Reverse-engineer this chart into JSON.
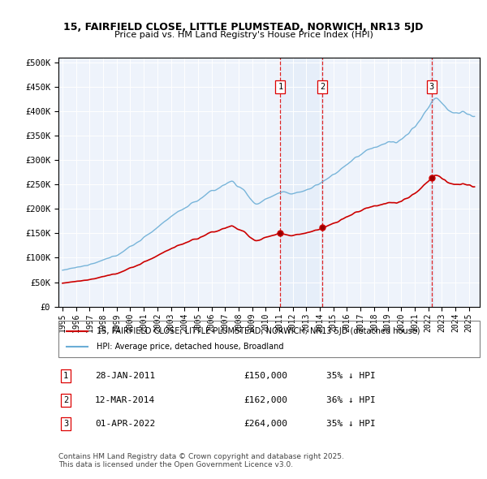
{
  "title": "15, FAIRFIELD CLOSE, LITTLE PLUMSTEAD, NORWICH, NR13 5JD",
  "subtitle": "Price paid vs. HM Land Registry's House Price Index (HPI)",
  "ytick_values": [
    0,
    50000,
    100000,
    150000,
    200000,
    250000,
    300000,
    350000,
    400000,
    450000,
    500000
  ],
  "ylim": [
    0,
    510000
  ],
  "xlim_start": 1994.7,
  "xlim_end": 2025.8,
  "xtick_years": [
    1995,
    1996,
    1997,
    1998,
    1999,
    2000,
    2001,
    2002,
    2003,
    2004,
    2005,
    2006,
    2007,
    2008,
    2009,
    2010,
    2011,
    2012,
    2013,
    2014,
    2015,
    2016,
    2017,
    2018,
    2019,
    2020,
    2021,
    2022,
    2023,
    2024,
    2025
  ],
  "hpi_color": "#6baed6",
  "price_color": "#cc0000",
  "vline_color": "#dd0000",
  "purchases": [
    {
      "num": 1,
      "date_num": 2011.08,
      "price": 150000,
      "label": "28-JAN-2011",
      "pct": "35% ↓ HPI"
    },
    {
      "num": 2,
      "date_num": 2014.19,
      "price": 162000,
      "label": "12-MAR-2014",
      "pct": "36% ↓ HPI"
    },
    {
      "num": 3,
      "date_num": 2022.25,
      "price": 264000,
      "label": "01-APR-2022",
      "pct": "35% ↓ HPI"
    }
  ],
  "legend_label_price": "15, FAIRFIELD CLOSE, LITTLE PLUMSTEAD, NORWICH, NR13 5JD (detached house)",
  "legend_label_hpi": "HPI: Average price, detached house, Broadland",
  "footer": "Contains HM Land Registry data © Crown copyright and database right 2025.\nThis data is licensed under the Open Government Licence v3.0.",
  "background_color": "#ffffff",
  "plot_bg_color": "#eef3fb"
}
